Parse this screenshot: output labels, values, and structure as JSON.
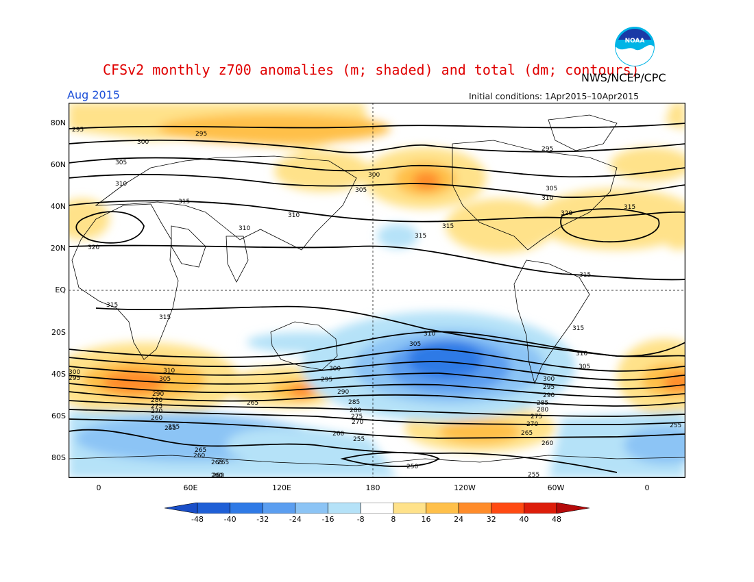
{
  "title": "CFSv2 monthly z700 anomalies (m; shaded) and total (dm; contours)",
  "agency": "NWS/NCEP/CPC",
  "period": "Aug 2015",
  "initial_conditions": "Initial conditions: 1Apr2015–10Apr2015",
  "logo_text": "NOAA",
  "lat_labels": [
    "80N",
    "60N",
    "40N",
    "20N",
    "EQ",
    "20S",
    "40S",
    "60S",
    "80S"
  ],
  "lon_labels": [
    "0",
    "60E",
    "120E",
    "180",
    "120W",
    "60W",
    "0"
  ],
  "colorbar": {
    "ticks": [
      "-48",
      "-40",
      "-32",
      "-24",
      "-16",
      "-8",
      "8",
      "16",
      "24",
      "32",
      "40",
      "48"
    ],
    "colors": [
      "#1f5fd6",
      "#2f7ae6",
      "#5b9ef0",
      "#8cc4f5",
      "#b5e2f8",
      "#ffffff",
      "#ffe28a",
      "#ffc04a",
      "#ff8c2a",
      "#ff4a12",
      "#dd1d0a"
    ],
    "arrow_left": "#1a4fc8",
    "arrow_right": "#b50a0a"
  },
  "contour_labels": [
    {
      "text": "295"
    },
    {
      "text": "295"
    },
    {
      "text": "295"
    },
    {
      "text": "300"
    },
    {
      "text": "300"
    },
    {
      "text": "305"
    },
    {
      "text": "305"
    },
    {
      "text": "305"
    },
    {
      "text": "310"
    },
    {
      "text": "310"
    },
    {
      "text": "310"
    },
    {
      "text": "315"
    },
    {
      "text": "315"
    },
    {
      "text": "315"
    },
    {
      "text": "315"
    },
    {
      "text": "320"
    },
    {
      "text": "320"
    },
    {
      "text": "310"
    },
    {
      "text": "315"
    },
    {
      "text": "315"
    },
    {
      "text": "315"
    },
    {
      "text": "315"
    },
    {
      "text": "310"
    },
    {
      "text": "305"
    },
    {
      "text": "310"
    },
    {
      "text": "305"
    },
    {
      "text": "300"
    },
    {
      "text": "295"
    },
    {
      "text": "290"
    },
    {
      "text": "285"
    },
    {
      "text": "280"
    },
    {
      "text": "275"
    },
    {
      "text": "270"
    },
    {
      "text": "265"
    },
    {
      "text": "260"
    },
    {
      "text": "255"
    },
    {
      "text": "250"
    },
    {
      "text": "255"
    },
    {
      "text": "260"
    },
    {
      "text": "265"
    },
    {
      "text": "260"
    },
    {
      "text": "255"
    },
    {
      "text": "310"
    },
    {
      "text": "305"
    },
    {
      "text": "300"
    },
    {
      "text": "295"
    },
    {
      "text": "290"
    },
    {
      "text": "285"
    },
    {
      "text": "280"
    },
    {
      "text": "275"
    },
    {
      "text": "270"
    },
    {
      "text": "265"
    },
    {
      "text": "260"
    },
    {
      "text": "255"
    },
    {
      "text": "300"
    },
    {
      "text": "295"
    },
    {
      "text": "290"
    },
    {
      "text": "280"
    },
    {
      "text": "275"
    },
    {
      "text": "270"
    },
    {
      "text": "265"
    },
    {
      "text": "260"
    },
    {
      "text": "255"
    },
    {
      "text": "265"
    },
    {
      "text": "260"
    }
  ]
}
